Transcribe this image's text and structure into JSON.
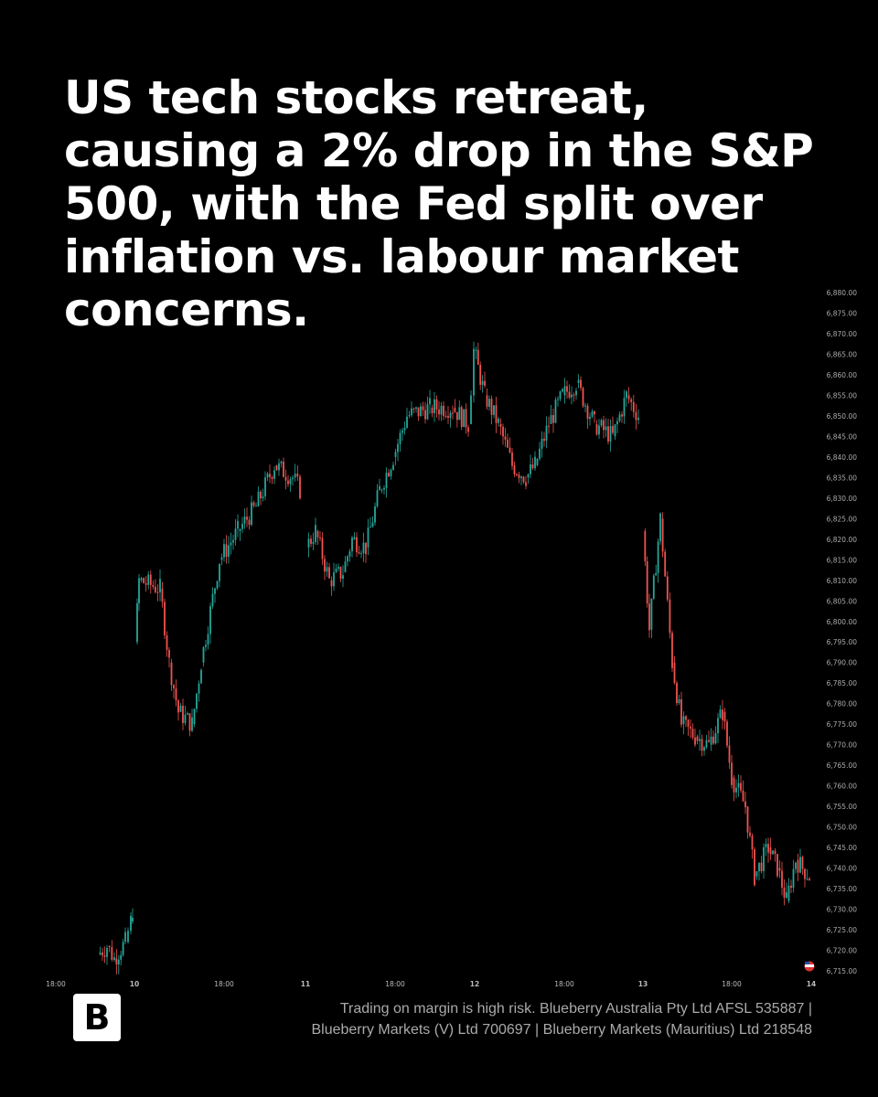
{
  "headline": "US tech stocks retreat, causing a 2% drop in the S&P 500, with the Fed split over inflation vs. labour market concerns.",
  "logo_letter": "B",
  "disclaimer": {
    "line1": "Trading on margin is high risk. Blueberry Australia Pty Ltd  AFSL 535887 |",
    "line2": "Blueberry Markets (V) Ltd 700697 | Blueberry Markets (Mauritius) Ltd 218548"
  },
  "colors": {
    "up": "#26a69a",
    "down": "#ef5350",
    "background": "#000000"
  },
  "chart_data": {
    "type": "candlestick",
    "title": "S&P 500",
    "ylim": [
      6715,
      6880
    ],
    "y_ticks": [
      "6,880.00",
      "6,875.00",
      "6,870.00",
      "6,865.00",
      "6,860.00",
      "6,855.00",
      "6,850.00",
      "6,845.00",
      "6,840.00",
      "6,835.00",
      "6,830.00",
      "6,825.00",
      "6,820.00",
      "6,815.00",
      "6,810.00",
      "6,805.00",
      "6,800.00",
      "6,795.00",
      "6,790.00",
      "6,785.00",
      "6,780.00",
      "6,775.00",
      "6,770.00",
      "6,765.00",
      "6,760.00",
      "6,755.00",
      "6,750.00",
      "6,745.00",
      "6,740.00",
      "6,735.00",
      "6,730.00",
      "6,725.00",
      "6,720.00",
      "6,715.00"
    ],
    "x_ticks": [
      {
        "label": "18:00",
        "t": 6
      },
      {
        "label": "10",
        "t": 92
      },
      {
        "label": "18:00",
        "t": 190
      },
      {
        "label": "11",
        "t": 279
      },
      {
        "label": "18:00",
        "t": 377
      },
      {
        "label": "12",
        "t": 464
      },
      {
        "label": "18:00",
        "t": 562
      },
      {
        "label": "13",
        "t": 648
      },
      {
        "label": "18:00",
        "t": 745
      },
      {
        "label": "14",
        "t": 832
      }
    ],
    "xlim": [
      0,
      840
    ],
    "price_path": [
      [
        52,
        6719
      ],
      [
        62,
        6721
      ],
      [
        70,
        6718
      ],
      [
        82,
        6722
      ],
      [
        88,
        6727
      ],
      [
        90,
        6730
      ],
      [
        93,
        6795
      ],
      [
        97,
        6810
      ],
      [
        120,
        6808
      ],
      [
        130,
        6790
      ],
      [
        140,
        6778
      ],
      [
        155,
        6775
      ],
      [
        165,
        6790
      ],
      [
        185,
        6815
      ],
      [
        205,
        6822
      ],
      [
        225,
        6828
      ],
      [
        245,
        6838
      ],
      [
        265,
        6835
      ],
      [
        273,
        6832
      ],
      [
        280,
        6818
      ],
      [
        290,
        6822
      ],
      [
        305,
        6810
      ],
      [
        320,
        6812
      ],
      [
        330,
        6820
      ],
      [
        345,
        6818
      ],
      [
        360,
        6832
      ],
      [
        375,
        6840
      ],
      [
        390,
        6850
      ],
      [
        415,
        6852
      ],
      [
        440,
        6852
      ],
      [
        457,
        6848
      ],
      [
        463,
        6866
      ],
      [
        475,
        6855
      ],
      [
        490,
        6848
      ],
      [
        505,
        6838
      ],
      [
        520,
        6835
      ],
      [
        530,
        6838
      ],
      [
        545,
        6848
      ],
      [
        560,
        6855
      ],
      [
        575,
        6858
      ],
      [
        595,
        6848
      ],
      [
        615,
        6845
      ],
      [
        630,
        6855
      ],
      [
        643,
        6850
      ],
      [
        648,
        6822
      ],
      [
        655,
        6798
      ],
      [
        667,
        6825
      ],
      [
        680,
        6790
      ],
      [
        690,
        6775
      ],
      [
        705,
        6772
      ],
      [
        720,
        6770
      ],
      [
        735,
        6778
      ],
      [
        745,
        6762
      ],
      [
        760,
        6755
      ],
      [
        770,
        6738
      ],
      [
        785,
        6745
      ],
      [
        795,
        6740
      ],
      [
        805,
        6732
      ],
      [
        815,
        6742
      ],
      [
        830,
        6738
      ]
    ],
    "gaps_after_t": [
      90,
      273,
      643
    ]
  }
}
